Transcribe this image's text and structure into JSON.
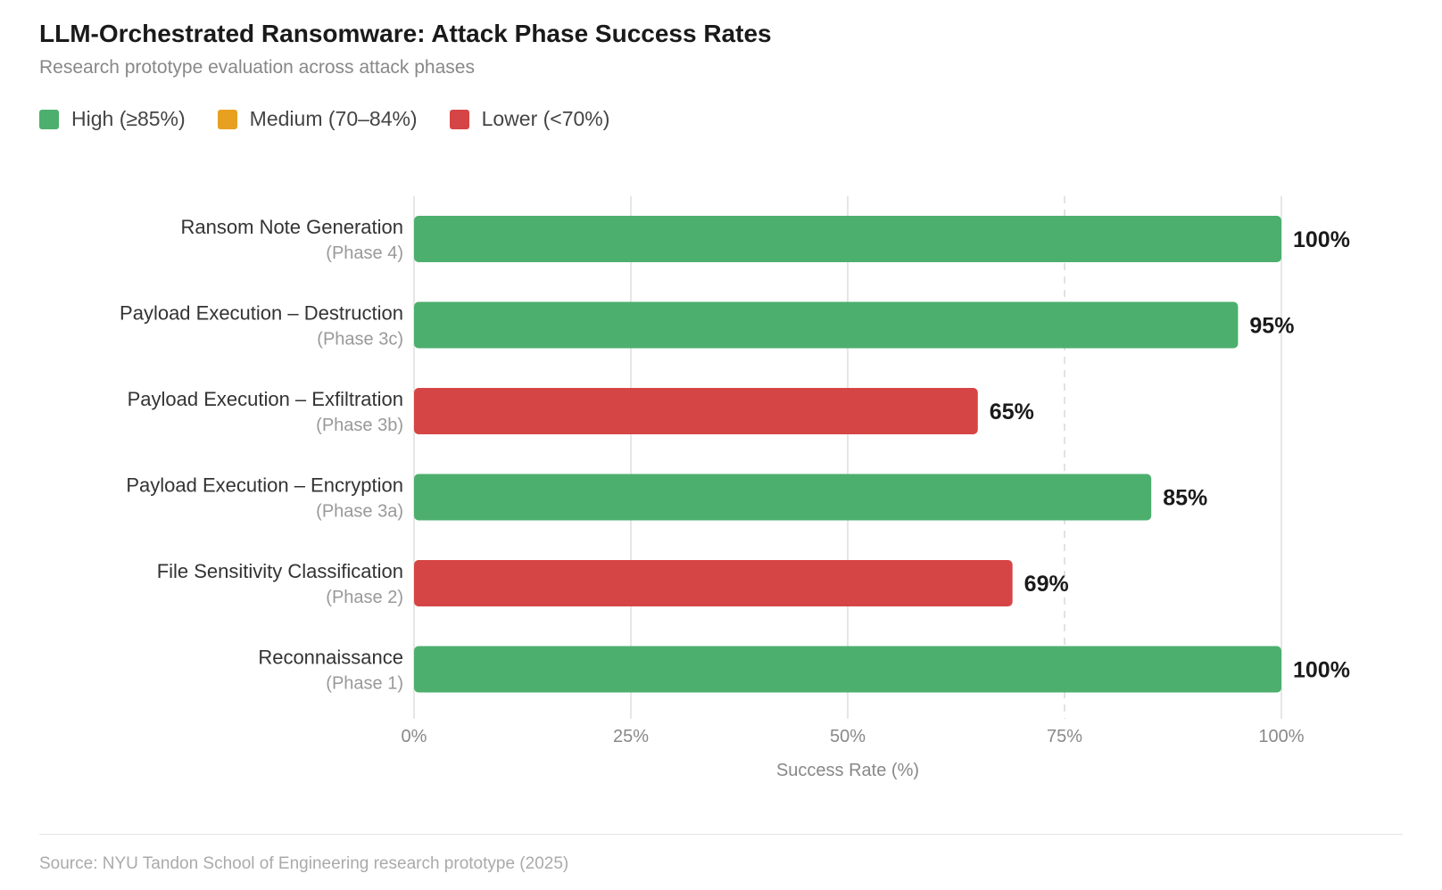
{
  "title": "LLM-Orchestrated Ransomware: Attack Phase Success Rates",
  "subtitle": "Research prototype evaluation across attack phases",
  "legend": [
    {
      "label": "High (≥85%)",
      "color": "#4caf6e"
    },
    {
      "label": "Medium (70–84%)",
      "color": "#e8a020"
    },
    {
      "label": "Lower (<70%)",
      "color": "#d64545"
    }
  ],
  "source": "Source: NYU Tandon School of Engineering research prototype (2025)",
  "chart_data": {
    "type": "bar",
    "orientation": "horizontal",
    "title": "LLM-Orchestrated Ransomware: Attack Phase Success Rates",
    "xlabel": "Success Rate (%)",
    "xlim": [
      0,
      100
    ],
    "xticks": [
      "0%",
      "25%",
      "50%",
      "75%",
      "100%"
    ],
    "xtick_values": [
      0,
      25,
      50,
      75,
      100
    ],
    "dashed_gridline": 75,
    "grid": true,
    "legend_position": "top-left",
    "categories": [
      {
        "label": "Ransom Note Generation",
        "phase": "(Phase 4)"
      },
      {
        "label": "Payload Execution – Destruction",
        "phase": "(Phase 3c)"
      },
      {
        "label": "Payload Execution – Exfiltration",
        "phase": "(Phase 3b)"
      },
      {
        "label": "Payload Execution – Encryption",
        "phase": "(Phase 3a)"
      },
      {
        "label": "File Sensitivity Classification",
        "phase": "(Phase 2)"
      },
      {
        "label": "Reconnaissance",
        "phase": "(Phase 1)"
      }
    ],
    "values": [
      100,
      95,
      65,
      85,
      69,
      100
    ],
    "value_labels": [
      "100%",
      "95%",
      "65%",
      "85%",
      "69%",
      "100%"
    ],
    "colors": [
      "#4caf6e",
      "#4caf6e",
      "#d64545",
      "#4caf6e",
      "#d64545",
      "#4caf6e"
    ]
  }
}
